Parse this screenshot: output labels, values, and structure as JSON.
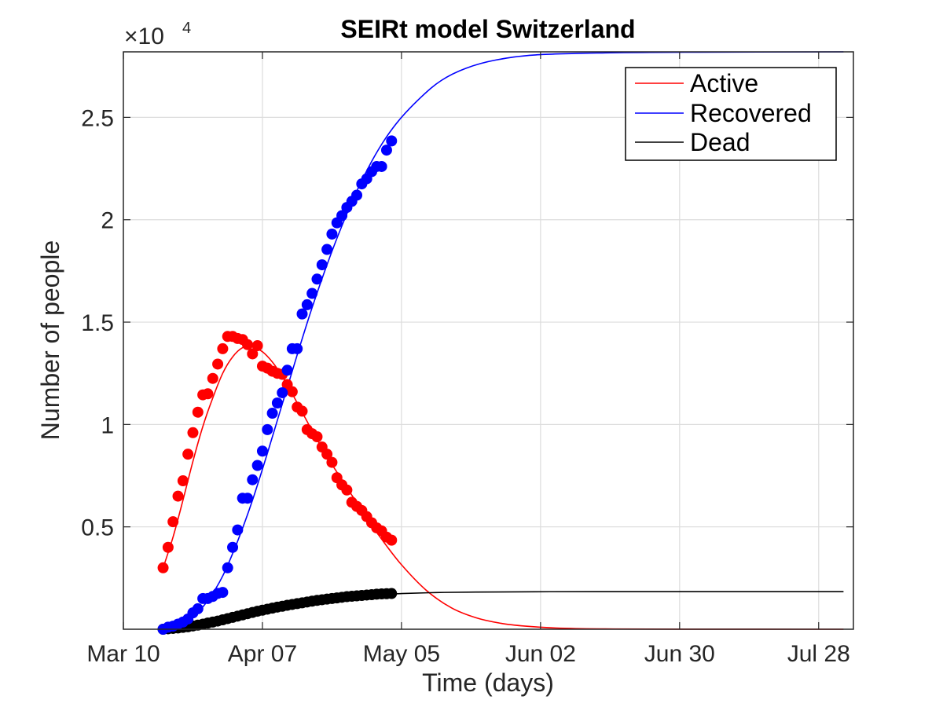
{
  "chart_data": {
    "type": "line",
    "title": "SEIRt model Switzerland",
    "xlabel": "Time (days)",
    "ylabel": "Number of people",
    "y_exponent_base": "×10",
    "y_exponent_power": "4",
    "xlim": [
      "2020-03-10",
      "2020-08-04"
    ],
    "ylim": [
      0,
      28200
    ],
    "x_ticks": [
      {
        "date": "2020-03-10",
        "label": "Mar 10"
      },
      {
        "date": "2020-04-07",
        "label": "Apr 07"
      },
      {
        "date": "2020-05-05",
        "label": "May 05"
      },
      {
        "date": "2020-06-02",
        "label": "Jun 02"
      },
      {
        "date": "2020-06-30",
        "label": "Jun 30"
      },
      {
        "date": "2020-07-28",
        "label": "Jul 28"
      }
    ],
    "y_ticks": [
      {
        "value": 5000,
        "label": "0.5"
      },
      {
        "value": 10000,
        "label": "1"
      },
      {
        "value": 15000,
        "label": "1.5"
      },
      {
        "value": 20000,
        "label": "2"
      },
      {
        "value": 25000,
        "label": "2.5"
      }
    ],
    "grid": true,
    "legend_position": "top-right",
    "data_start_date": "2020-03-18",
    "model_start_date": "2020-03-18",
    "model_end_date": "2020-08-02",
    "series": [
      {
        "name": "Active",
        "color": "#ff0000",
        "observed": [
          3000,
          4000,
          5250,
          6500,
          7250,
          8550,
          9600,
          10600,
          11450,
          11500,
          12250,
          12950,
          13700,
          14300,
          14300,
          14200,
          14150,
          13900,
          13450,
          13850,
          12850,
          12750,
          12600,
          12500,
          12450,
          11950,
          11600,
          10850,
          10650,
          9750,
          9550,
          9400,
          8900,
          8550,
          8150,
          7400,
          7050,
          6800,
          6200,
          6000,
          5800,
          5500,
          5200,
          4950,
          4800,
          4500,
          4350
        ],
        "model": [
          [
            "2020-03-18",
            3000
          ],
          [
            "2020-03-20",
            4500
          ],
          [
            "2020-03-22",
            6300
          ],
          [
            "2020-03-24",
            8200
          ],
          [
            "2020-03-26",
            9900
          ],
          [
            "2020-03-28",
            11300
          ],
          [
            "2020-03-30",
            12500
          ],
          [
            "2020-04-01",
            13300
          ],
          [
            "2020-04-03",
            13750
          ],
          [
            "2020-04-05",
            13800
          ],
          [
            "2020-04-07",
            13550
          ],
          [
            "2020-04-09",
            13050
          ],
          [
            "2020-04-11",
            12350
          ],
          [
            "2020-04-13",
            11500
          ],
          [
            "2020-04-15",
            10600
          ],
          [
            "2020-04-17",
            9700
          ],
          [
            "2020-04-19",
            8850
          ],
          [
            "2020-04-21",
            8050
          ],
          [
            "2020-04-23",
            7300
          ],
          [
            "2020-04-25",
            6550
          ],
          [
            "2020-04-27",
            5850
          ],
          [
            "2020-04-29",
            5100
          ],
          [
            "2020-05-01",
            4400
          ],
          [
            "2020-05-05",
            3150
          ],
          [
            "2020-05-10",
            1900
          ],
          [
            "2020-05-15",
            1050
          ],
          [
            "2020-05-20",
            560
          ],
          [
            "2020-05-25",
            290
          ],
          [
            "2020-05-30",
            150
          ],
          [
            "2020-06-05",
            60
          ],
          [
            "2020-06-15",
            15
          ],
          [
            "2020-07-01",
            2
          ],
          [
            "2020-08-02",
            0
          ]
        ]
      },
      {
        "name": "Recovered",
        "color": "#0000ff",
        "observed": [
          0,
          100,
          150,
          250,
          350,
          500,
          800,
          1000,
          1500,
          1500,
          1600,
          1750,
          1800,
          3000,
          4000,
          4850,
          6400,
          6400,
          7300,
          8000,
          8700,
          9750,
          10550,
          11050,
          11550,
          12650,
          13700,
          13700,
          15400,
          15850,
          16400,
          17100,
          17800,
          18550,
          19300,
          19850,
          20200,
          20600,
          20900,
          21200,
          21750,
          22000,
          22350,
          22600,
          22600,
          23400,
          23850
        ],
        "model": [
          [
            "2020-03-18",
            0
          ],
          [
            "2020-03-21",
            200
          ],
          [
            "2020-03-24",
            600
          ],
          [
            "2020-03-27",
            1400
          ],
          [
            "2020-03-30",
            2600
          ],
          [
            "2020-04-02",
            4300
          ],
          [
            "2020-04-05",
            6300
          ],
          [
            "2020-04-08",
            8600
          ],
          [
            "2020-04-11",
            11000
          ],
          [
            "2020-04-14",
            13400
          ],
          [
            "2020-04-17",
            15700
          ],
          [
            "2020-04-20",
            17800
          ],
          [
            "2020-04-23",
            19700
          ],
          [
            "2020-04-26",
            21400
          ],
          [
            "2020-04-29",
            22850
          ],
          [
            "2020-05-02",
            24050
          ],
          [
            "2020-05-05",
            25000
          ],
          [
            "2020-05-09",
            26000
          ],
          [
            "2020-05-13",
            26800
          ],
          [
            "2020-05-18",
            27400
          ],
          [
            "2020-05-24",
            27800
          ],
          [
            "2020-06-01",
            28050
          ],
          [
            "2020-06-15",
            28150
          ],
          [
            "2020-07-01",
            28180
          ],
          [
            "2020-08-02",
            28200
          ]
        ]
      },
      {
        "name": "Dead",
        "color": "#000000",
        "observed": [
          0,
          20,
          40,
          60,
          90,
          120,
          160,
          200,
          250,
          300,
          350,
          400,
          460,
          520,
          580,
          640,
          700,
          760,
          820,
          880,
          930,
          980,
          1030,
          1080,
          1120,
          1170,
          1210,
          1250,
          1290,
          1330,
          1370,
          1410,
          1440,
          1470,
          1500,
          1530,
          1560,
          1590,
          1610,
          1630,
          1650,
          1670,
          1690,
          1710,
          1725,
          1735,
          1745
        ],
        "model": [
          [
            "2020-03-18",
            0
          ],
          [
            "2020-03-22",
            100
          ],
          [
            "2020-03-26",
            280
          ],
          [
            "2020-03-30",
            500
          ],
          [
            "2020-04-03",
            720
          ],
          [
            "2020-04-07",
            920
          ],
          [
            "2020-04-11",
            1100
          ],
          [
            "2020-04-15",
            1260
          ],
          [
            "2020-04-19",
            1400
          ],
          [
            "2020-04-23",
            1520
          ],
          [
            "2020-04-27",
            1620
          ],
          [
            "2020-05-01",
            1690
          ],
          [
            "2020-05-05",
            1740
          ],
          [
            "2020-05-12",
            1790
          ],
          [
            "2020-05-20",
            1815
          ],
          [
            "2020-06-01",
            1830
          ],
          [
            "2020-06-20",
            1835
          ],
          [
            "2020-08-02",
            1835
          ]
        ]
      }
    ]
  }
}
